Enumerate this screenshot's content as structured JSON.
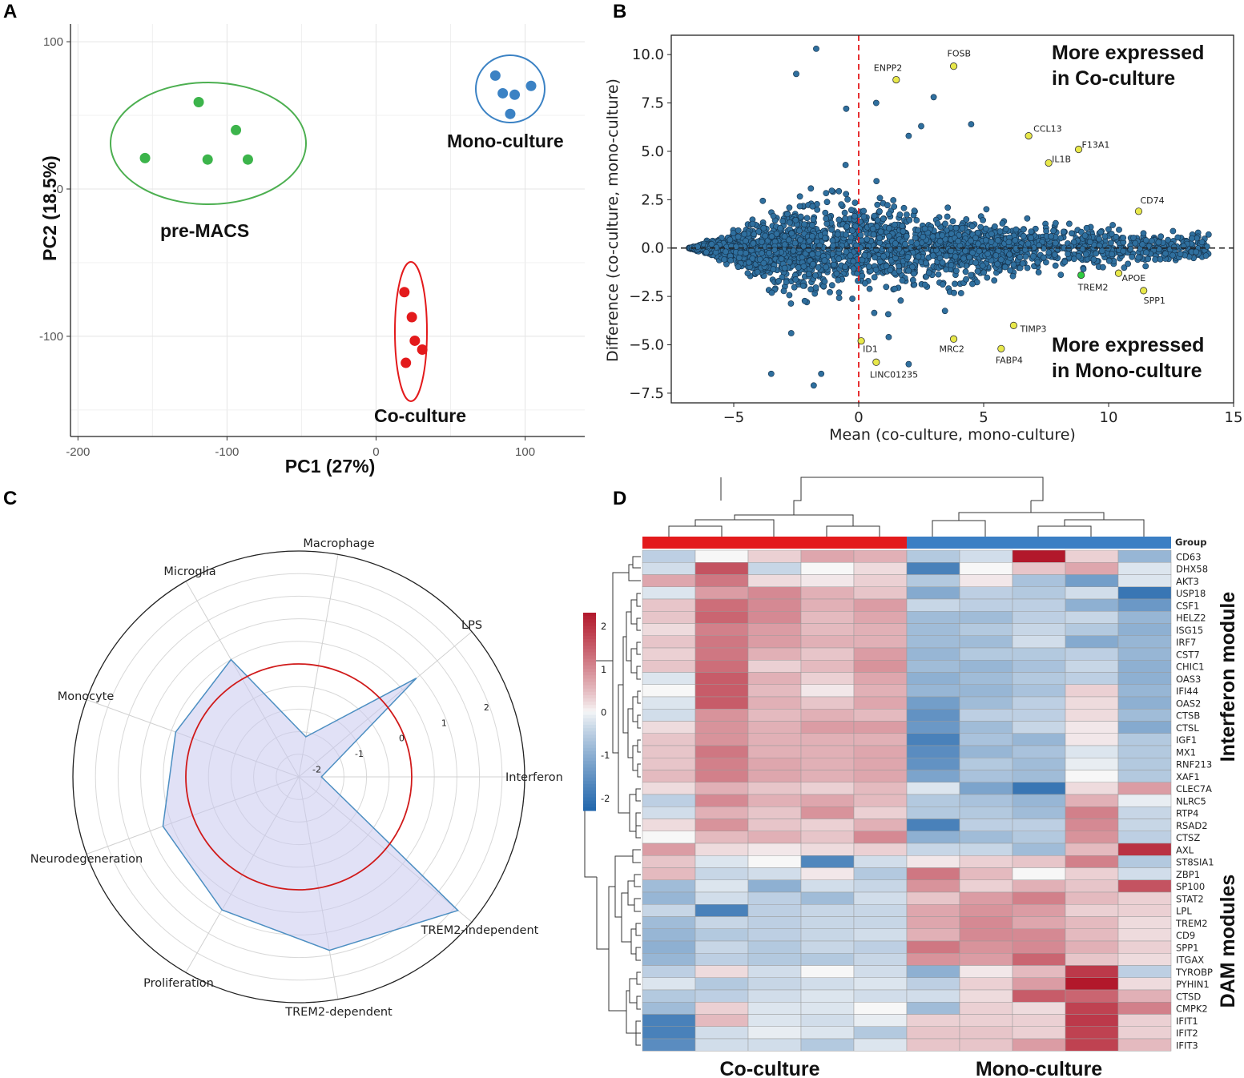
{
  "panel_labels": [
    "A",
    "B",
    "C",
    "D"
  ],
  "chart_data": [
    {
      "panel": "A",
      "type": "scatter",
      "title": "",
      "xlabel": "PC1 (27%)",
      "ylabel": "PC2 (18.5%)",
      "xlim": [
        -205,
        140
      ],
      "ylim": [
        -168,
        112
      ],
      "xticks": [
        -200,
        -100,
        0,
        100
      ],
      "yticks": [
        100,
        0,
        -100
      ],
      "series": [
        {
          "name": "pre-MACS",
          "color": "#3cb44b",
          "points": [
            [
              -155,
              21
            ],
            [
              -119,
              59
            ],
            [
              -94,
              40
            ],
            [
              -113,
              20
            ],
            [
              -86,
              20
            ]
          ]
        },
        {
          "name": "Mono-culture",
          "color": "#3b82c4",
          "points": [
            [
              80,
              77
            ],
            [
              85,
              65
            ],
            [
              93,
              64
            ],
            [
              90,
              51
            ],
            [
              104,
              70
            ]
          ]
        },
        {
          "name": "Co-culture",
          "color": "#e31a1c",
          "points": [
            [
              19,
              -70
            ],
            [
              24,
              -87
            ],
            [
              26,
              -103
            ],
            [
              31,
              -109
            ],
            [
              20,
              -118
            ]
          ]
        }
      ]
    },
    {
      "panel": "B",
      "type": "scatter",
      "title": "",
      "xlabel": "Mean (co-culture, mono-culture)",
      "ylabel": "Difference (co-culture, mono-culture)",
      "xlim": [
        -7.5,
        15
      ],
      "ylim": [
        -8,
        11
      ],
      "xticks": [
        -5,
        0,
        5,
        10,
        15
      ],
      "yticks": [
        10.0,
        7.5,
        5.0,
        2.5,
        0.0,
        -2.5,
        -5.0,
        -7.5
      ],
      "xtick_labels": [
        "−5",
        "0",
        "5",
        "10",
        "15"
      ],
      "ytick_labels": [
        "10.0",
        "7.5",
        "5.0",
        "2.5",
        "0.0",
        "−2.5",
        "−5.0",
        "−7.5"
      ],
      "annotations": [
        "More expressed",
        "in Co-culture",
        "More expressed",
        "in Mono-culture"
      ],
      "labeled_genes": [
        {
          "gene": "ENPP2",
          "x": 1.5,
          "y": 8.7,
          "color": "#e8e84a"
        },
        {
          "gene": "FOSB",
          "x": 3.8,
          "y": 9.4,
          "color": "#e8e84a"
        },
        {
          "gene": "CCL13",
          "x": 6.8,
          "y": 5.8,
          "color": "#e8e84a"
        },
        {
          "gene": "F13A1",
          "x": 8.8,
          "y": 5.1,
          "color": "#e8e84a"
        },
        {
          "gene": "IL1B",
          "x": 7.6,
          "y": 4.4,
          "color": "#e8e84a"
        },
        {
          "gene": "CD74",
          "x": 11.2,
          "y": 1.9,
          "color": "#e8e84a"
        },
        {
          "gene": "APOE",
          "x": 10.4,
          "y": -1.3,
          "color": "#e8e84a"
        },
        {
          "gene": "SPP1",
          "x": 11.4,
          "y": -2.2,
          "color": "#e8e84a"
        },
        {
          "gene": "TREM2",
          "x": 8.9,
          "y": -1.4,
          "color": "#2ecc40"
        },
        {
          "gene": "TIMP3",
          "x": 6.2,
          "y": -4.0,
          "color": "#e8e84a"
        },
        {
          "gene": "MRC2",
          "x": 3.8,
          "y": -4.7,
          "color": "#e8e84a"
        },
        {
          "gene": "FABP4",
          "x": 5.7,
          "y": -5.2,
          "color": "#e8e84a"
        },
        {
          "gene": "ID1",
          "x": 0.1,
          "y": -4.8,
          "color": "#e8e84a"
        },
        {
          "gene": "LINC01235",
          "x": 0.7,
          "y": -5.9,
          "color": "#e8e84a"
        }
      ]
    },
    {
      "panel": "C",
      "type": "radar",
      "title": "",
      "axes": [
        "Interferon",
        "LPS",
        "Macrophage",
        "Microglia",
        "Monocyte",
        "Neurodegeneration",
        "Proliferation",
        "TREM2-dependent",
        "TREM2-independent"
      ],
      "values": [
        -2.0,
        0.9,
        -1.6,
        0.5,
        0.4,
        0.7,
        0.9,
        1.4,
        2.1
      ],
      "rlim": [
        -2.5,
        2.5
      ],
      "rticks": [
        -2,
        -1,
        0,
        1,
        2
      ],
      "reference_circle": 0
    },
    {
      "panel": "D",
      "type": "heatmap",
      "title": "",
      "groups": [
        "Co-culture",
        "Co-culture",
        "Co-culture",
        "Co-culture",
        "Co-culture",
        "Mono-culture",
        "Mono-culture",
        "Mono-culture",
        "Mono-culture",
        "Mono-culture"
      ],
      "group_colors": {
        "Co-culture": "#e31a1c",
        "Mono-culture": "#3b7fc4"
      },
      "group_header": "Group",
      "group_labels": [
        "Co-culture",
        "Mono-culture"
      ],
      "module_labels": [
        "Interferon module",
        "DAM modules"
      ],
      "colorbar_ticks": [
        2,
        1,
        0,
        -1,
        -2
      ],
      "colorbar_tick_labels": [
        "2",
        "1",
        "0",
        "-1",
        "-2"
      ],
      "rows": [
        "CD63",
        "DHX58",
        "AKT3",
        "USP18",
        "CSF1",
        "HELZ2",
        "ISG15",
        "IRF7",
        "CST7",
        "CHIC1",
        "OAS3",
        "IFI44",
        "OAS2",
        "CTSB",
        "CTSL",
        "IGF1",
        "MX1",
        "RNF213",
        "XAF1",
        "CLEC7A",
        "NLRC5",
        "RTP4",
        "RSAD2",
        "CTSZ",
        "AXL",
        "ST8SIA1",
        "ZBP1",
        "SP100",
        "STAT2",
        "LPL",
        "TREM2",
        "CD9",
        "SPP1",
        "ITGAX",
        "TYROBP",
        "PYHIN1",
        "CTSD",
        "CMPK2",
        "IFIT1",
        "IFIT2",
        "IFIT3"
      ],
      "values": [
        [
          -0.5,
          0.0,
          0.3,
          0.7,
          0.6,
          -0.6,
          -0.3,
          2.3,
          0.3,
          -0.9
        ],
        [
          -0.3,
          1.6,
          -0.4,
          0.0,
          0.2,
          -1.8,
          0.0,
          0.4,
          0.7,
          -0.2
        ],
        [
          0.7,
          1.2,
          0.2,
          0.1,
          0.3,
          -0.6,
          0.1,
          -0.7,
          -1.3,
          -0.2
        ],
        [
          -0.2,
          0.8,
          1.0,
          0.6,
          0.4,
          -1.1,
          -0.5,
          -0.6,
          -0.3,
          -2.0
        ],
        [
          0.4,
          1.3,
          1.0,
          0.6,
          0.8,
          -0.4,
          -0.5,
          -0.5,
          -1.0,
          -1.4
        ],
        [
          0.4,
          1.4,
          1.0,
          0.5,
          0.7,
          -0.8,
          -0.8,
          -0.5,
          -0.4,
          -0.9
        ],
        [
          0.2,
          1.1,
          0.8,
          0.5,
          0.6,
          -0.8,
          -0.6,
          -0.4,
          -0.6,
          -1.0
        ],
        [
          0.4,
          1.2,
          0.8,
          0.6,
          0.6,
          -0.8,
          -0.8,
          -0.3,
          -1.1,
          -0.9
        ],
        [
          0.3,
          1.2,
          0.6,
          0.4,
          0.8,
          -0.9,
          -0.6,
          -0.6,
          -0.5,
          -0.9
        ],
        [
          0.4,
          1.3,
          0.3,
          0.5,
          0.9,
          -0.8,
          -0.9,
          -0.7,
          -0.4,
          -1.0
        ],
        [
          -0.2,
          1.5,
          0.6,
          0.3,
          0.7,
          -1.0,
          -0.8,
          -0.6,
          -0.5,
          -1.0
        ],
        [
          0.0,
          1.5,
          0.5,
          0.1,
          0.6,
          -0.9,
          -0.9,
          -0.7,
          0.3,
          -0.9
        ],
        [
          -0.2,
          1.5,
          0.6,
          0.4,
          0.7,
          -1.3,
          -0.8,
          -0.5,
          0.2,
          -1.0
        ],
        [
          -0.3,
          0.9,
          0.5,
          0.6,
          0.5,
          -1.5,
          -0.5,
          -0.5,
          0.2,
          -0.8
        ],
        [
          0.2,
          0.9,
          0.6,
          0.8,
          0.8,
          -1.4,
          -0.8,
          -0.4,
          0.1,
          -1.1
        ],
        [
          0.4,
          0.9,
          0.6,
          0.6,
          0.6,
          -1.8,
          -0.7,
          -0.9,
          0.1,
          -0.6
        ],
        [
          0.4,
          1.2,
          0.6,
          0.6,
          0.7,
          -1.6,
          -0.9,
          -0.7,
          -0.2,
          -0.6
        ],
        [
          0.4,
          1.1,
          0.7,
          0.6,
          0.7,
          -1.5,
          -0.6,
          -0.8,
          -0.1,
          -0.6
        ],
        [
          0.5,
          1.1,
          0.7,
          0.6,
          0.7,
          -1.2,
          -0.7,
          -0.8,
          0.0,
          -0.6
        ],
        [
          0.2,
          0.6,
          0.4,
          0.3,
          0.5,
          -0.2,
          -1.2,
          -2.0,
          0.2,
          0.8
        ],
        [
          -0.5,
          1.0,
          0.6,
          0.7,
          0.5,
          -0.6,
          -0.7,
          -0.9,
          0.6,
          -0.1
        ],
        [
          -0.3,
          0.6,
          0.4,
          0.9,
          0.3,
          -0.6,
          -0.6,
          -0.8,
          1.1,
          -0.4
        ],
        [
          0.2,
          0.9,
          0.4,
          0.3,
          0.6,
          -1.8,
          -0.5,
          -0.5,
          1.0,
          -0.4
        ],
        [
          0.0,
          0.5,
          0.6,
          0.4,
          1.0,
          -1.0,
          -0.8,
          -0.6,
          0.9,
          -0.5
        ],
        [
          0.8,
          0.2,
          0.1,
          0.2,
          0.3,
          -0.4,
          -0.4,
          -0.8,
          0.5,
          2.0
        ],
        [
          0.4,
          -0.2,
          0.0,
          -1.7,
          -0.3,
          0.1,
          0.3,
          0.4,
          1.1,
          -0.6
        ],
        [
          0.5,
          -0.4,
          -0.3,
          0.1,
          -0.6,
          1.2,
          0.5,
          0.0,
          0.3,
          -0.3
        ],
        [
          -0.8,
          -0.2,
          -1.0,
          -0.3,
          -0.4,
          0.9,
          0.3,
          0.6,
          0.4,
          1.6
        ],
        [
          -0.9,
          -0.3,
          -0.5,
          -0.8,
          -0.3,
          0.4,
          0.8,
          1.1,
          0.5,
          0.3
        ],
        [
          -0.4,
          -1.8,
          -0.5,
          -0.4,
          -0.4,
          0.7,
          0.9,
          0.8,
          0.3,
          0.3
        ],
        [
          -0.8,
          -0.4,
          -0.5,
          -0.4,
          -0.4,
          0.7,
          1.0,
          0.7,
          0.5,
          0.2
        ],
        [
          -0.9,
          -0.6,
          -0.5,
          -0.4,
          -0.3,
          0.6,
          1.0,
          1.0,
          0.5,
          0.2
        ],
        [
          -1.0,
          -0.4,
          -0.6,
          -0.4,
          -0.5,
          1.2,
          0.9,
          1.0,
          0.6,
          0.3
        ],
        [
          -0.9,
          -0.5,
          -0.6,
          -0.6,
          -0.4,
          0.9,
          0.8,
          1.4,
          0.4,
          0.2
        ],
        [
          -0.5,
          0.2,
          -0.3,
          0.0,
          -0.3,
          -1.0,
          0.1,
          0.5,
          1.9,
          -0.5
        ],
        [
          -0.2,
          -0.6,
          -0.4,
          -0.3,
          -0.2,
          -0.5,
          0.3,
          0.8,
          2.3,
          0.2
        ],
        [
          -0.6,
          -0.5,
          -0.3,
          -0.2,
          -0.3,
          -0.3,
          0.2,
          1.5,
          1.4,
          0.6
        ],
        [
          -0.8,
          0.3,
          -0.2,
          -0.2,
          0.0,
          -0.8,
          0.3,
          0.2,
          1.8,
          1.1
        ],
        [
          -1.8,
          0.5,
          -0.2,
          -0.3,
          -0.1,
          0.3,
          0.3,
          0.3,
          1.9,
          0.3
        ],
        [
          -1.8,
          -0.3,
          -0.1,
          -0.2,
          -0.6,
          0.4,
          0.4,
          0.3,
          1.8,
          0.3
        ],
        [
          -1.6,
          -0.3,
          -0.3,
          -0.6,
          -0.2,
          0.4,
          0.4,
          0.8,
          1.8,
          0.5
        ]
      ]
    }
  ]
}
